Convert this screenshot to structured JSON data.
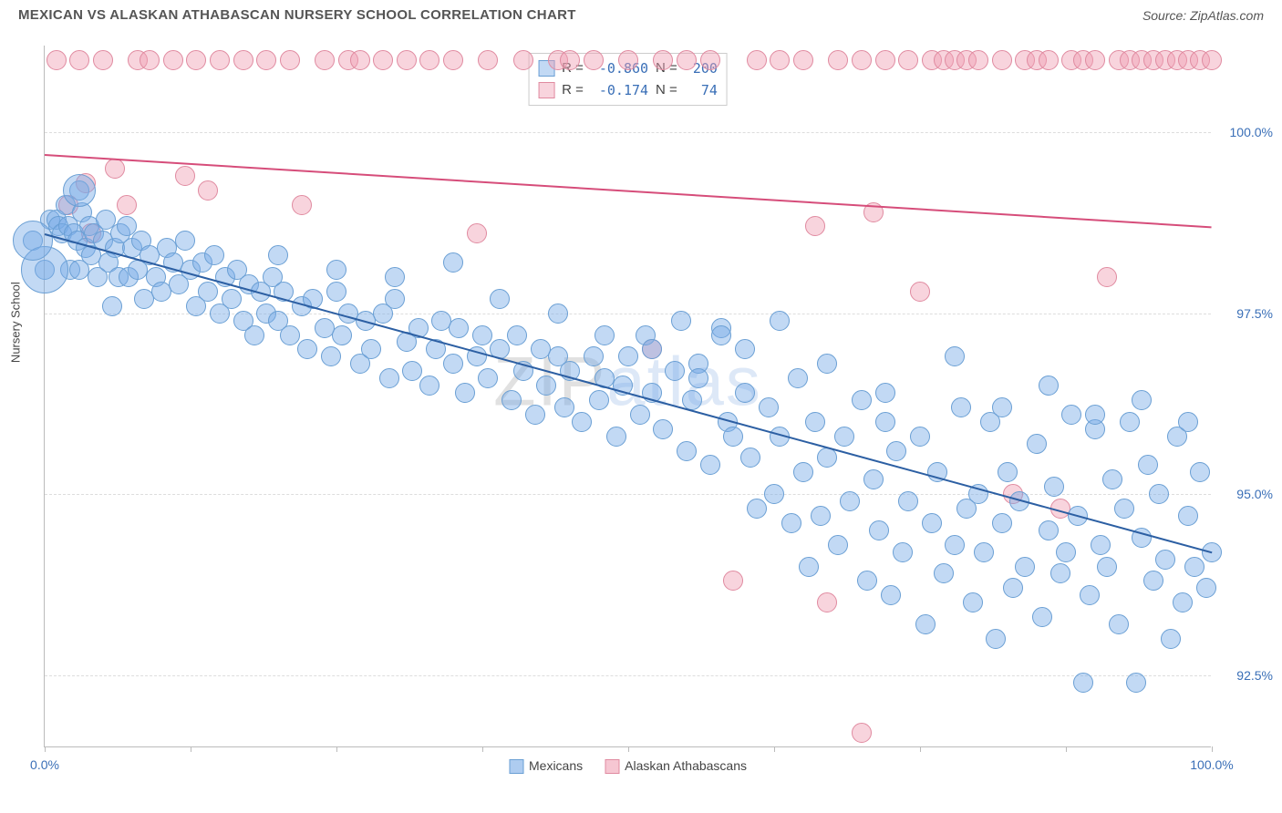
{
  "header": {
    "title": "MEXICAN VS ALASKAN ATHABASCAN NURSERY SCHOOL CORRELATION CHART",
    "source": "Source: ZipAtlas.com"
  },
  "watermark": {
    "part1": "ZIP",
    "part2": "atlas"
  },
  "chart": {
    "type": "scatter",
    "y_axis_label": "Nursery School",
    "background_color": "#ffffff",
    "grid_color": "#dddddd",
    "axis_color": "#bbbbbb",
    "text_color": "#3a6fb7",
    "xlim": [
      0,
      100
    ],
    "ylim": [
      91.5,
      101.2
    ],
    "y_ticks": [
      92.5,
      95.0,
      97.5,
      100.0
    ],
    "y_tick_labels": [
      "92.5%",
      "95.0%",
      "97.5%",
      "100.0%"
    ],
    "x_ticks": [
      0,
      12.5,
      25,
      37.5,
      50,
      62.5,
      75,
      87.5,
      100
    ],
    "x_tick_labels": {
      "0": "0.0%",
      "100": "100.0%"
    },
    "series": [
      {
        "name": "Mexicans",
        "fill": "rgba(120,170,230,0.45)",
        "stroke": "#6a9fd4",
        "trend_color": "#2c5fa3",
        "trend": {
          "x1": 0,
          "y1": 98.6,
          "x2": 100,
          "y2": 94.2
        },
        "R": "-0.860",
        "N": "200",
        "marker_radius": 11,
        "points": [
          [
            0.5,
            98.8
          ],
          [
            1,
            98.8
          ],
          [
            1.2,
            98.7
          ],
          [
            1.5,
            98.6
          ],
          [
            1.8,
            99.0
          ],
          [
            2,
            98.7
          ],
          [
            2.2,
            98.1
          ],
          [
            2.5,
            98.6
          ],
          [
            2.8,
            98.5
          ],
          [
            3,
            98.1
          ],
          [
            3.2,
            98.9
          ],
          [
            3.5,
            98.4
          ],
          [
            3.8,
            98.7
          ],
          [
            4,
            98.3
          ],
          [
            4.2,
            98.6
          ],
          [
            4.5,
            98.0
          ],
          [
            5,
            98.5
          ],
          [
            5.2,
            98.8
          ],
          [
            5.5,
            98.2
          ],
          [
            5.8,
            97.6
          ],
          [
            6,
            98.4
          ],
          [
            6.3,
            98.0
          ],
          [
            6.5,
            98.6
          ],
          [
            7,
            98.7
          ],
          [
            7.2,
            98.0
          ],
          [
            7.5,
            98.4
          ],
          [
            8,
            98.1
          ],
          [
            8.3,
            98.5
          ],
          [
            8.5,
            97.7
          ],
          [
            9,
            98.3
          ],
          [
            9.5,
            98.0
          ],
          [
            10,
            97.8
          ],
          [
            10.5,
            98.4
          ],
          [
            11,
            98.2
          ],
          [
            11.5,
            97.9
          ],
          [
            12,
            98.5
          ],
          [
            12.5,
            98.1
          ],
          [
            13,
            97.6
          ],
          [
            13.5,
            98.2
          ],
          [
            14,
            97.8
          ],
          [
            14.5,
            98.3
          ],
          [
            15,
            97.5
          ],
          [
            15.5,
            98.0
          ],
          [
            16,
            97.7
          ],
          [
            16.5,
            98.1
          ],
          [
            17,
            97.4
          ],
          [
            17.5,
            97.9
          ],
          [
            18,
            97.2
          ],
          [
            18.5,
            97.8
          ],
          [
            19,
            97.5
          ],
          [
            19.5,
            98.0
          ],
          [
            20,
            97.4
          ],
          [
            20.5,
            97.8
          ],
          [
            21,
            97.2
          ],
          [
            22,
            97.6
          ],
          [
            22.5,
            97.0
          ],
          [
            23,
            97.7
          ],
          [
            24,
            97.3
          ],
          [
            24.5,
            96.9
          ],
          [
            25,
            97.8
          ],
          [
            25.5,
            97.2
          ],
          [
            26,
            97.5
          ],
          [
            27,
            96.8
          ],
          [
            27.5,
            97.4
          ],
          [
            28,
            97.0
          ],
          [
            29,
            97.5
          ],
          [
            29.5,
            96.6
          ],
          [
            30,
            97.7
          ],
          [
            31,
            97.1
          ],
          [
            31.5,
            96.7
          ],
          [
            32,
            97.3
          ],
          [
            33,
            96.5
          ],
          [
            33.5,
            97.0
          ],
          [
            34,
            97.4
          ],
          [
            35,
            96.8
          ],
          [
            35.5,
            97.3
          ],
          [
            36,
            96.4
          ],
          [
            37,
            96.9
          ],
          [
            37.5,
            97.2
          ],
          [
            38,
            96.6
          ],
          [
            39,
            97.0
          ],
          [
            40,
            96.3
          ],
          [
            40.5,
            97.2
          ],
          [
            41,
            96.7
          ],
          [
            42,
            96.1
          ],
          [
            42.5,
            97.0
          ],
          [
            43,
            96.5
          ],
          [
            44,
            96.9
          ],
          [
            44.5,
            96.2
          ],
          [
            45,
            96.7
          ],
          [
            46,
            96.0
          ],
          [
            47,
            96.9
          ],
          [
            47.5,
            96.3
          ],
          [
            48,
            96.6
          ],
          [
            49,
            95.8
          ],
          [
            49.5,
            96.5
          ],
          [
            50,
            96.9
          ],
          [
            51,
            96.1
          ],
          [
            51.5,
            97.2
          ],
          [
            52,
            96.4
          ],
          [
            53,
            95.9
          ],
          [
            54,
            96.7
          ],
          [
            54.5,
            97.4
          ],
          [
            55,
            95.6
          ],
          [
            55.5,
            96.3
          ],
          [
            56,
            96.8
          ],
          [
            57,
            95.4
          ],
          [
            58,
            97.3
          ],
          [
            58.5,
            96.0
          ],
          [
            59,
            95.8
          ],
          [
            60,
            96.4
          ],
          [
            60.5,
            95.5
          ],
          [
            61,
            94.8
          ],
          [
            62,
            96.2
          ],
          [
            62.5,
            95.0
          ],
          [
            63,
            95.8
          ],
          [
            64,
            94.6
          ],
          [
            64.5,
            96.6
          ],
          [
            65,
            95.3
          ],
          [
            65.5,
            94.0
          ],
          [
            66,
            96.0
          ],
          [
            66.5,
            94.7
          ],
          [
            67,
            95.5
          ],
          [
            68,
            94.3
          ],
          [
            68.5,
            95.8
          ],
          [
            69,
            94.9
          ],
          [
            70,
            96.3
          ],
          [
            70.5,
            93.8
          ],
          [
            71,
            95.2
          ],
          [
            71.5,
            94.5
          ],
          [
            72,
            96.0
          ],
          [
            72.5,
            93.6
          ],
          [
            73,
            95.6
          ],
          [
            73.5,
            94.2
          ],
          [
            74,
            94.9
          ],
          [
            75,
            95.8
          ],
          [
            75.5,
            93.2
          ],
          [
            76,
            94.6
          ],
          [
            76.5,
            95.3
          ],
          [
            77,
            93.9
          ],
          [
            78,
            94.3
          ],
          [
            78.5,
            96.2
          ],
          [
            79,
            94.8
          ],
          [
            79.5,
            93.5
          ],
          [
            80,
            95.0
          ],
          [
            80.5,
            94.2
          ],
          [
            81,
            96.0
          ],
          [
            81.5,
            93.0
          ],
          [
            82,
            94.6
          ],
          [
            82.5,
            95.3
          ],
          [
            83,
            93.7
          ],
          [
            83.5,
            94.9
          ],
          [
            84,
            94.0
          ],
          [
            85,
            95.7
          ],
          [
            85.5,
            93.3
          ],
          [
            86,
            94.5
          ],
          [
            86.5,
            95.1
          ],
          [
            87,
            93.9
          ],
          [
            87.5,
            94.2
          ],
          [
            88,
            96.1
          ],
          [
            88.5,
            94.7
          ],
          [
            89,
            92.4
          ],
          [
            89.5,
            93.6
          ],
          [
            90,
            95.9
          ],
          [
            90.5,
            94.3
          ],
          [
            91,
            94.0
          ],
          [
            91.5,
            95.2
          ],
          [
            92,
            93.2
          ],
          [
            92.5,
            94.8
          ],
          [
            93,
            96.0
          ],
          [
            93.5,
            92.4
          ],
          [
            94,
            94.4
          ],
          [
            94.5,
            95.4
          ],
          [
            95,
            93.8
          ],
          [
            95.5,
            95.0
          ],
          [
            96,
            94.1
          ],
          [
            96.5,
            93.0
          ],
          [
            97,
            95.8
          ],
          [
            97.5,
            93.5
          ],
          [
            98,
            94.7
          ],
          [
            98.5,
            94.0
          ],
          [
            99,
            95.3
          ],
          [
            99.5,
            93.7
          ],
          [
            100,
            94.2
          ],
          [
            58,
            97.2
          ],
          [
            60,
            97.0
          ],
          [
            63,
            97.4
          ],
          [
            67,
            96.8
          ],
          [
            72,
            96.4
          ],
          [
            78,
            96.9
          ],
          [
            82,
            96.2
          ],
          [
            86,
            96.5
          ],
          [
            90,
            96.1
          ],
          [
            94,
            96.3
          ],
          [
            98,
            96.0
          ],
          [
            20,
            98.3
          ],
          [
            25,
            98.1
          ],
          [
            30,
            98.0
          ],
          [
            35,
            98.2
          ],
          [
            39,
            97.7
          ],
          [
            44,
            97.5
          ],
          [
            48,
            97.2
          ],
          [
            52,
            97.0
          ],
          [
            56,
            96.6
          ],
          [
            0,
            98.1
          ],
          [
            -1,
            98.5
          ],
          [
            3,
            99.2
          ]
        ]
      },
      {
        "name": "Alaskan Athabascans",
        "fill": "rgba(240,160,180,0.45)",
        "stroke": "#e08aa0",
        "trend_color": "#d64d7a",
        "trend": {
          "x1": 0,
          "y1": 99.7,
          "x2": 100,
          "y2": 98.7
        },
        "R": "-0.174",
        "N": "74",
        "marker_radius": 11,
        "points": [
          [
            1,
            101.0
          ],
          [
            2,
            99.0
          ],
          [
            3,
            101.0
          ],
          [
            3.5,
            99.3
          ],
          [
            4,
            98.6
          ],
          [
            5,
            101.0
          ],
          [
            6,
            99.5
          ],
          [
            7,
            99.0
          ],
          [
            8,
            101.0
          ],
          [
            9,
            101.0
          ],
          [
            11,
            101.0
          ],
          [
            13,
            101.0
          ],
          [
            14,
            99.2
          ],
          [
            15,
            101.0
          ],
          [
            17,
            101.0
          ],
          [
            19,
            101.0
          ],
          [
            21,
            101.0
          ],
          [
            22,
            99.0
          ],
          [
            24,
            101.0
          ],
          [
            26,
            101.0
          ],
          [
            27,
            101.0
          ],
          [
            29,
            101.0
          ],
          [
            31,
            101.0
          ],
          [
            33,
            101.0
          ],
          [
            35,
            101.0
          ],
          [
            37,
            98.6
          ],
          [
            38,
            101.0
          ],
          [
            41,
            101.0
          ],
          [
            44,
            101.0
          ],
          [
            47,
            101.0
          ],
          [
            50,
            101.0
          ],
          [
            52,
            97.0
          ],
          [
            53,
            101.0
          ],
          [
            55,
            101.0
          ],
          [
            57,
            101.0
          ],
          [
            59,
            93.8
          ],
          [
            61,
            101.0
          ],
          [
            63,
            101.0
          ],
          [
            65,
            101.0
          ],
          [
            66,
            98.7
          ],
          [
            67,
            93.5
          ],
          [
            68,
            101.0
          ],
          [
            70,
            101.0
          ],
          [
            71,
            98.9
          ],
          [
            72,
            101.0
          ],
          [
            74,
            101.0
          ],
          [
            75,
            97.8
          ],
          [
            76,
            101.0
          ],
          [
            77,
            101.0
          ],
          [
            78,
            101.0
          ],
          [
            79,
            101.0
          ],
          [
            80,
            101.0
          ],
          [
            82,
            101.0
          ],
          [
            83,
            95.0
          ],
          [
            84,
            101.0
          ],
          [
            85,
            101.0
          ],
          [
            86,
            101.0
          ],
          [
            87,
            94.8
          ],
          [
            88,
            101.0
          ],
          [
            89,
            101.0
          ],
          [
            90,
            101.0
          ],
          [
            91,
            98.0
          ],
          [
            92,
            101.0
          ],
          [
            93,
            101.0
          ],
          [
            94,
            101.0
          ],
          [
            95,
            101.0
          ],
          [
            96,
            101.0
          ],
          [
            97,
            101.0
          ],
          [
            98,
            101.0
          ],
          [
            99,
            101.0
          ],
          [
            100,
            101.0
          ],
          [
            70,
            91.7
          ],
          [
            45,
            101.0
          ],
          [
            12,
            99.4
          ]
        ]
      }
    ],
    "bottom_legend": [
      {
        "label": "Mexicans",
        "fill": "rgba(120,170,230,0.6)",
        "stroke": "#6a9fd4"
      },
      {
        "label": "Alaskan Athabascans",
        "fill": "rgba(240,160,180,0.6)",
        "stroke": "#e08aa0"
      }
    ]
  }
}
